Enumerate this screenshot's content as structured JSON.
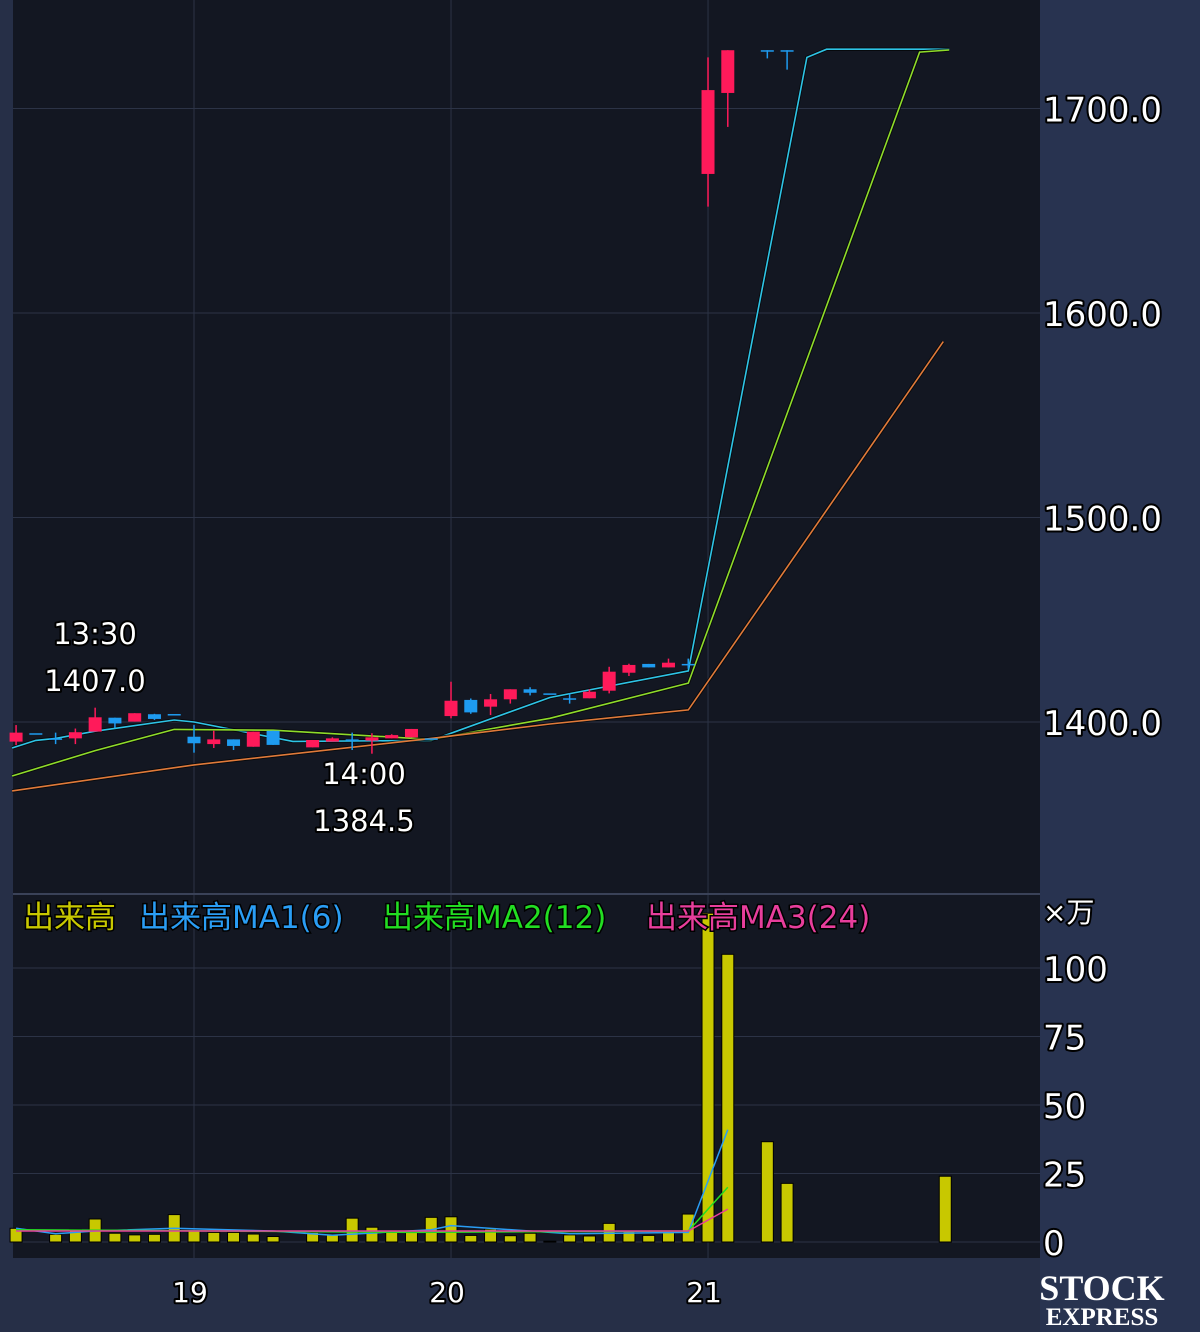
{
  "chart_data": {
    "type": "candlestick",
    "x_tick_labels": [
      {
        "index": 9,
        "label": "19"
      },
      {
        "index": 22,
        "label": "20"
      },
      {
        "index": 35,
        "label": "21"
      }
    ],
    "price_axis": {
      "ticks": [
        "1400.0",
        "1500.0",
        "1600.0",
        "1700.0"
      ],
      "tick_values": [
        1400,
        1500,
        1600,
        1700
      ],
      "range": [
        1340,
        1753
      ]
    },
    "volume_axis": {
      "unit_label": "×万",
      "ticks": [
        "0",
        "25",
        "50",
        "75",
        "100"
      ],
      "tick_values": [
        0,
        25,
        50,
        75,
        100
      ],
      "range": [
        -6,
        122
      ]
    },
    "grid": true,
    "colors": {
      "up": "#ff1a5a",
      "down": "#1e9bf0",
      "volume": "#c8c800",
      "ma_short": "#2ec4e6",
      "ma_mid": "#8fdc2a",
      "ma_long": "#e07a3a",
      "vol_ma1": "#2a9df4",
      "vol_ma2": "#22dd22",
      "vol_ma3": "#e83e9c"
    },
    "candles": [
      [
        1390.4,
        1398.5,
        1388.7,
        1394.8
      ],
      [
        1394.5,
        1394.5,
        1394.5,
        1394.5
      ],
      [
        1392,
        1394.8,
        1389.2,
        1392
      ],
      [
        1392,
        1396.8,
        1389.2,
        1395
      ],
      [
        1395.3,
        1407.0,
        1395.3,
        1402.3
      ],
      [
        1402.1,
        1402.1,
        1397,
        1399.3
      ],
      [
        1400.2,
        1404.3,
        1400.2,
        1404.3
      ],
      [
        1403.8,
        1404,
        1401,
        1401.5
      ],
      [
        1403.9,
        1403.9,
        1403.9,
        1403.9
      ],
      [
        1392.8,
        1398.5,
        1385,
        1389.6
      ],
      [
        1389.2,
        1395.7,
        1387.3,
        1391.5
      ],
      [
        1391.5,
        1391.5,
        1386.3,
        1388.3
      ],
      [
        1387.9,
        1395.3,
        1387.9,
        1395.3
      ],
      [
        1395.7,
        1395.7,
        1388.8,
        1388.8
      ],
      null,
      [
        1387.6,
        1391.2,
        1387.6,
        1391.2
      ],
      [
        1390.4,
        1392.5,
        1390.4,
        1392
      ],
      [
        1391.5,
        1394.8,
        1386.3,
        1391.5
      ],
      [
        1390.9,
        1394.5,
        1384.5,
        1392.5
      ],
      [
        1392,
        1394,
        1392,
        1393.6
      ],
      [
        1392.5,
        1396.6,
        1392.5,
        1396.6
      ],
      [
        1392,
        1392,
        1392,
        1392
      ],
      [
        1402.9,
        1419.7,
        1401.8,
        1410.4
      ],
      [
        1410.8,
        1411.5,
        1404,
        1404.7
      ],
      [
        1407.5,
        1413.7,
        1403.4,
        1411.1
      ],
      [
        1411.1,
        1416,
        1409,
        1416
      ],
      [
        1416,
        1417,
        1413,
        1414.3
      ],
      [
        1414,
        1414,
        1414,
        1414
      ],
      [
        1411.6,
        1414,
        1409,
        1411.6
      ],
      [
        1411.6,
        1416,
        1411.6,
        1414.8
      ],
      [
        1415.3,
        1427,
        1414,
        1424.6
      ],
      [
        1424.1,
        1428.5,
        1422.5,
        1427.9
      ],
      [
        1428.4,
        1428.4,
        1426.7,
        1426.7
      ],
      [
        1426.7,
        1431,
        1426.7,
        1429
      ],
      [
        1428.4,
        1431,
        1426,
        1428.4
      ],
      [
        1668,
        1725,
        1652,
        1709
      ],
      [
        1707.6,
        1728.5,
        1691,
        1728.5
      ],
      null,
      [
        1728.5,
        1728.5,
        1724.5,
        1728.5
      ],
      [
        1728.5,
        1728.5,
        1719,
        1728.5
      ],
      null,
      null,
      null,
      null,
      null,
      null,
      null,
      null
    ],
    "price_ma": [
      {
        "key": "ma_short",
        "points": [
          [
            -0.2,
            1387.3
          ],
          [
            1,
            1391
          ],
          [
            2,
            1392
          ],
          [
            4,
            1395.5
          ],
          [
            8,
            1401
          ],
          [
            9,
            1400
          ],
          [
            14,
            1390.5
          ],
          [
            21,
            1391
          ],
          [
            27,
            1412
          ],
          [
            34,
            1425
          ],
          [
            40,
            1725
          ],
          [
            41,
            1729
          ],
          [
            47.2,
            1729
          ]
        ]
      },
      {
        "key": "ma_mid",
        "points": [
          [
            -0.2,
            1373.6
          ],
          [
            4,
            1386
          ],
          [
            8,
            1396.4
          ],
          [
            13,
            1396
          ],
          [
            21,
            1391.5
          ],
          [
            27,
            1401.8
          ],
          [
            34,
            1419
          ],
          [
            45.7,
            1727.6
          ],
          [
            47.2,
            1728.6
          ]
        ]
      },
      {
        "key": "ma_long",
        "points": [
          [
            -0.2,
            1366.3
          ],
          [
            9,
            1379
          ],
          [
            21,
            1392
          ],
          [
            27,
            1399
          ],
          [
            34,
            1405.9
          ],
          [
            46.9,
            1586
          ]
        ]
      }
    ],
    "volume": [
      5,
      0,
      2.8,
      4.6,
      8.4,
      3.2,
      2.6,
      2.8,
      10,
      4,
      3.5,
      3.5,
      2.9,
      2,
      0,
      3.5,
      2.6,
      8.7,
      5.4,
      3.5,
      3.5,
      9,
      9.2,
      2.4,
      4.7,
      2.3,
      3.2,
      0.3,
      2.6,
      2.2,
      6.8,
      3.8,
      2.4,
      3.8,
      10.2,
      120,
      105,
      0,
      36.6,
      21.4,
      0,
      0,
      0,
      0,
      0,
      0,
      0,
      24
    ],
    "volume_ma": [
      {
        "key": "vol_ma1",
        "points": [
          [
            0,
            5
          ],
          [
            2,
            3
          ],
          [
            4,
            4
          ],
          [
            8,
            5
          ],
          [
            13,
            4
          ],
          [
            16,
            2.5
          ],
          [
            21,
            4.5
          ],
          [
            22,
            6
          ],
          [
            28,
            3
          ],
          [
            34,
            3.5
          ],
          [
            36,
            41
          ]
        ]
      },
      {
        "key": "vol_ma2",
        "points": [
          [
            0,
            4.5
          ],
          [
            10,
            4
          ],
          [
            20,
            3.5
          ],
          [
            34,
            4
          ],
          [
            36,
            20
          ]
        ]
      },
      {
        "key": "vol_ma3",
        "points": [
          [
            0,
            4
          ],
          [
            20,
            4
          ],
          [
            34,
            4
          ],
          [
            36,
            12
          ]
        ]
      }
    ],
    "annotations": [
      {
        "index": 4,
        "time": "13:30",
        "price": "1407.0",
        "position": "above"
      },
      {
        "index": 18,
        "time": "14:00",
        "price": "1384.5",
        "position": "below"
      }
    ],
    "legend": [
      {
        "label": "出来高",
        "color_key": "volume"
      },
      {
        "label": "出来高MA1(6)",
        "color_key": "vol_ma1"
      },
      {
        "label": "出来高MA2(12)",
        "color_key": "vol_ma2"
      },
      {
        "label": "出来高MA3(24)",
        "color_key": "vol_ma3"
      }
    ]
  },
  "watermark": {
    "line1": "STOCK",
    "line2": "EXPRESS"
  }
}
